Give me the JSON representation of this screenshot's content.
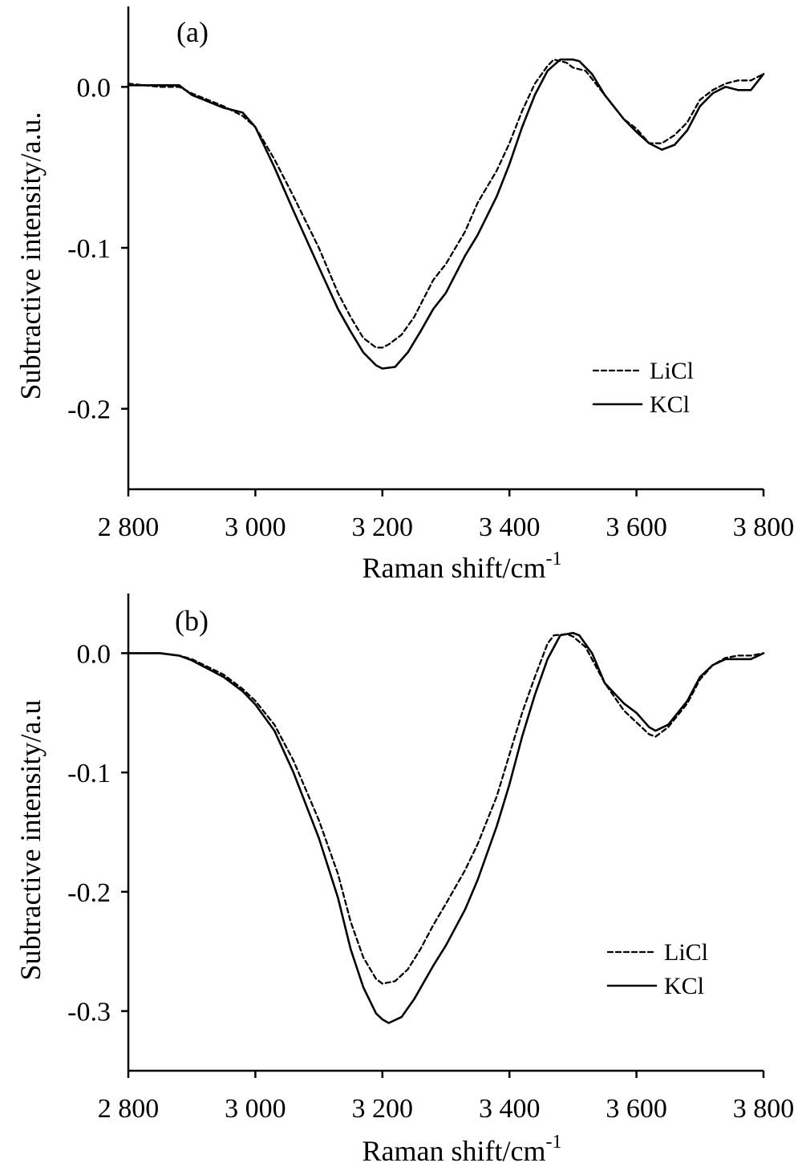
{
  "chart_data": [
    {
      "type": "line",
      "panel_label": "(a)",
      "xlabel": "Raman shift/cm",
      "xlabel_sup": "-1",
      "ylabel": "Subtractive intensity/a.u.",
      "xlim": [
        2800,
        3800
      ],
      "ylim": [
        -0.25,
        0.05
      ],
      "x_ticks": [
        2800,
        3000,
        3200,
        3400,
        3600,
        3800
      ],
      "x_tick_labels": [
        "2 800",
        "3 000",
        "3 200",
        "3 400",
        "3 600",
        "3 800"
      ],
      "y_ticks": [
        0.0,
        -0.1,
        -0.2
      ],
      "y_tick_labels": [
        "0.0",
        "-0.1",
        "-0.2"
      ],
      "legend_position": "bottom-right",
      "grid": false,
      "series": [
        {
          "name": "LiCl",
          "style": "dashed",
          "color": "#000000",
          "points": [
            [
              2800,
              0.002
            ],
            [
              2850,
              0.0
            ],
            [
              2880,
              0.0
            ],
            [
              2900,
              -0.004
            ],
            [
              2950,
              -0.012
            ],
            [
              2980,
              -0.018
            ],
            [
              3000,
              -0.025
            ],
            [
              3030,
              -0.045
            ],
            [
              3060,
              -0.068
            ],
            [
              3100,
              -0.1
            ],
            [
              3130,
              -0.128
            ],
            [
              3150,
              -0.143
            ],
            [
              3170,
              -0.156
            ],
            [
              3190,
              -0.162
            ],
            [
              3200,
              -0.162
            ],
            [
              3210,
              -0.16
            ],
            [
              3230,
              -0.154
            ],
            [
              3250,
              -0.143
            ],
            [
              3280,
              -0.12
            ],
            [
              3300,
              -0.11
            ],
            [
              3330,
              -0.09
            ],
            [
              3350,
              -0.072
            ],
            [
              3380,
              -0.052
            ],
            [
              3400,
              -0.035
            ],
            [
              3420,
              -0.015
            ],
            [
              3440,
              0.002
            ],
            [
              3460,
              0.013
            ],
            [
              3470,
              0.017
            ],
            [
              3490,
              0.015
            ],
            [
              3500,
              0.012
            ],
            [
              3520,
              0.01
            ],
            [
              3550,
              -0.005
            ],
            [
              3580,
              -0.02
            ],
            [
              3600,
              -0.026
            ],
            [
              3620,
              -0.035
            ],
            [
              3640,
              -0.035
            ],
            [
              3660,
              -0.03
            ],
            [
              3680,
              -0.022
            ],
            [
              3700,
              -0.008
            ],
            [
              3720,
              -0.002
            ],
            [
              3740,
              0.002
            ],
            [
              3760,
              0.004
            ],
            [
              3780,
              0.004
            ],
            [
              3800,
              0.008
            ]
          ]
        },
        {
          "name": "KCl",
          "style": "solid",
          "color": "#000000",
          "points": [
            [
              2800,
              0.001
            ],
            [
              2850,
              0.001
            ],
            [
              2880,
              0.001
            ],
            [
              2900,
              -0.005
            ],
            [
              2950,
              -0.013
            ],
            [
              2980,
              -0.016
            ],
            [
              3000,
              -0.025
            ],
            [
              3030,
              -0.05
            ],
            [
              3060,
              -0.077
            ],
            [
              3100,
              -0.112
            ],
            [
              3130,
              -0.138
            ],
            [
              3150,
              -0.152
            ],
            [
              3170,
              -0.165
            ],
            [
              3190,
              -0.173
            ],
            [
              3200,
              -0.175
            ],
            [
              3220,
              -0.174
            ],
            [
              3240,
              -0.165
            ],
            [
              3260,
              -0.152
            ],
            [
              3280,
              -0.138
            ],
            [
              3300,
              -0.128
            ],
            [
              3330,
              -0.105
            ],
            [
              3350,
              -0.092
            ],
            [
              3380,
              -0.068
            ],
            [
              3400,
              -0.048
            ],
            [
              3420,
              -0.025
            ],
            [
              3440,
              -0.005
            ],
            [
              3460,
              0.01
            ],
            [
              3480,
              0.017
            ],
            [
              3500,
              0.017
            ],
            [
              3510,
              0.016
            ],
            [
              3530,
              0.008
            ],
            [
              3550,
              -0.005
            ],
            [
              3580,
              -0.02
            ],
            [
              3600,
              -0.028
            ],
            [
              3620,
              -0.035
            ],
            [
              3640,
              -0.039
            ],
            [
              3660,
              -0.036
            ],
            [
              3680,
              -0.027
            ],
            [
              3700,
              -0.012
            ],
            [
              3720,
              -0.004
            ],
            [
              3740,
              0.0
            ],
            [
              3760,
              -0.002
            ],
            [
              3780,
              -0.002
            ],
            [
              3800,
              0.008
            ]
          ]
        }
      ]
    },
    {
      "type": "line",
      "panel_label": "(b)",
      "xlabel": "Raman shift/cm",
      "xlabel_sup": "-1",
      "ylabel": "Subtractive intensity/a.u",
      "xlim": [
        2800,
        3800
      ],
      "ylim": [
        -0.35,
        0.05
      ],
      "x_ticks": [
        2800,
        3000,
        3200,
        3400,
        3600,
        3800
      ],
      "x_tick_labels": [
        "2 800",
        "3 000",
        "3 200",
        "3 400",
        "3 600",
        "3 800"
      ],
      "y_ticks": [
        0.0,
        -0.1,
        -0.2,
        -0.3
      ],
      "y_tick_labels": [
        "0.0",
        "-0.1",
        "-0.2",
        "-0.3"
      ],
      "legend_position": "bottom-right",
      "grid": false,
      "series": [
        {
          "name": "LiCl",
          "style": "dashed",
          "color": "#000000",
          "points": [
            [
              2800,
              0.0
            ],
            [
              2850,
              0.0
            ],
            [
              2880,
              -0.002
            ],
            [
              2900,
              -0.005
            ],
            [
              2950,
              -0.018
            ],
            [
              2980,
              -0.03
            ],
            [
              3000,
              -0.04
            ],
            [
              3030,
              -0.06
            ],
            [
              3060,
              -0.09
            ],
            [
              3100,
              -0.14
            ],
            [
              3130,
              -0.185
            ],
            [
              3150,
              -0.225
            ],
            [
              3170,
              -0.255
            ],
            [
              3190,
              -0.273
            ],
            [
              3200,
              -0.277
            ],
            [
              3220,
              -0.275
            ],
            [
              3240,
              -0.265
            ],
            [
              3260,
              -0.248
            ],
            [
              3280,
              -0.228
            ],
            [
              3300,
              -0.21
            ],
            [
              3330,
              -0.182
            ],
            [
              3350,
              -0.16
            ],
            [
              3380,
              -0.12
            ],
            [
              3400,
              -0.085
            ],
            [
              3420,
              -0.05
            ],
            [
              3440,
              -0.02
            ],
            [
              3460,
              0.008
            ],
            [
              3470,
              0.015
            ],
            [
              3490,
              0.016
            ],
            [
              3500,
              0.014
            ],
            [
              3520,
              0.005
            ],
            [
              3550,
              -0.025
            ],
            [
              3580,
              -0.048
            ],
            [
              3600,
              -0.058
            ],
            [
              3620,
              -0.068
            ],
            [
              3630,
              -0.07
            ],
            [
              3650,
              -0.062
            ],
            [
              3680,
              -0.042
            ],
            [
              3700,
              -0.022
            ],
            [
              3720,
              -0.01
            ],
            [
              3740,
              -0.004
            ],
            [
              3760,
              -0.002
            ],
            [
              3780,
              -0.002
            ],
            [
              3800,
              0.0
            ]
          ]
        },
        {
          "name": "KCl",
          "style": "solid",
          "color": "#000000",
          "points": [
            [
              2800,
              0.0
            ],
            [
              2850,
              0.0
            ],
            [
              2880,
              -0.002
            ],
            [
              2900,
              -0.006
            ],
            [
              2950,
              -0.02
            ],
            [
              2980,
              -0.032
            ],
            [
              3000,
              -0.043
            ],
            [
              3030,
              -0.065
            ],
            [
              3060,
              -0.1
            ],
            [
              3100,
              -0.155
            ],
            [
              3130,
              -0.205
            ],
            [
              3150,
              -0.248
            ],
            [
              3170,
              -0.28
            ],
            [
              3190,
              -0.302
            ],
            [
              3200,
              -0.307
            ],
            [
              3210,
              -0.31
            ],
            [
              3230,
              -0.305
            ],
            [
              3250,
              -0.29
            ],
            [
              3280,
              -0.262
            ],
            [
              3300,
              -0.245
            ],
            [
              3330,
              -0.215
            ],
            [
              3350,
              -0.19
            ],
            [
              3380,
              -0.145
            ],
            [
              3400,
              -0.11
            ],
            [
              3420,
              -0.07
            ],
            [
              3440,
              -0.035
            ],
            [
              3460,
              -0.005
            ],
            [
              3480,
              0.015
            ],
            [
              3500,
              0.017
            ],
            [
              3510,
              0.015
            ],
            [
              3530,
              0.0
            ],
            [
              3550,
              -0.025
            ],
            [
              3580,
              -0.042
            ],
            [
              3600,
              -0.05
            ],
            [
              3620,
              -0.062
            ],
            [
              3630,
              -0.065
            ],
            [
              3650,
              -0.06
            ],
            [
              3680,
              -0.04
            ],
            [
              3700,
              -0.02
            ],
            [
              3720,
              -0.01
            ],
            [
              3740,
              -0.005
            ],
            [
              3760,
              -0.005
            ],
            [
              3780,
              -0.005
            ],
            [
              3800,
              0.0
            ]
          ]
        }
      ]
    }
  ]
}
